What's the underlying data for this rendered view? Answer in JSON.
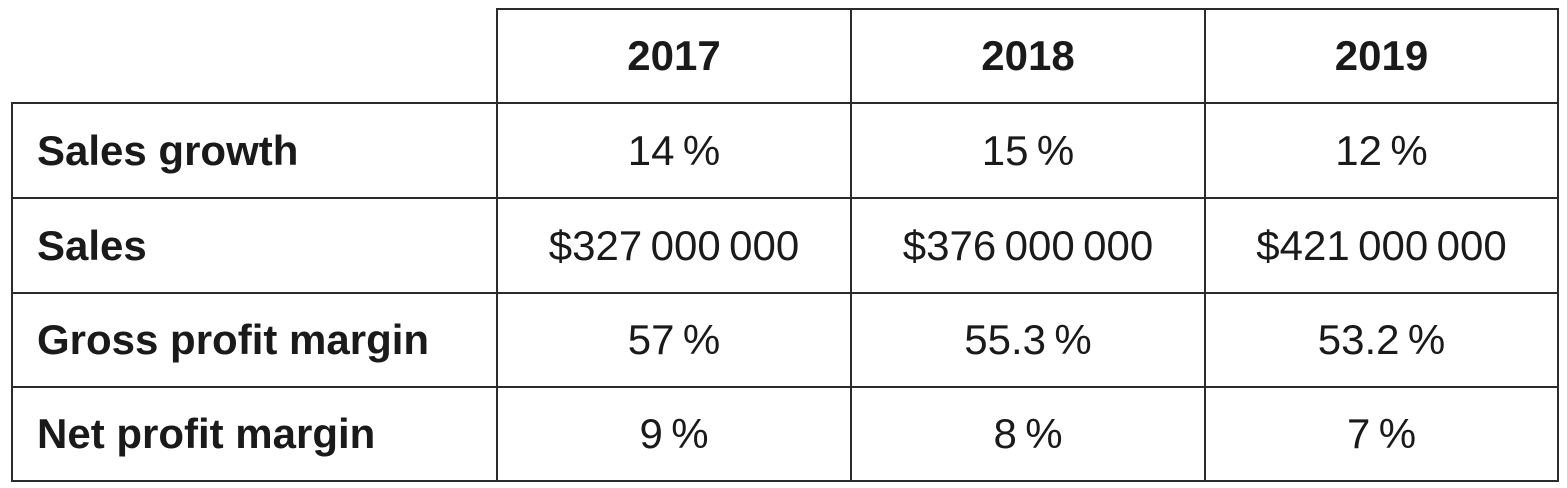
{
  "table": {
    "columns": [
      "2017",
      "2018",
      "2019"
    ],
    "rows": [
      {
        "label": "Sales growth",
        "values": [
          "14 %",
          "15 %",
          "12 %"
        ]
      },
      {
        "label": "Sales",
        "values": [
          "$327 000 000",
          "$376 000 000",
          "$421 000 000"
        ]
      },
      {
        "label": "Gross profit margin",
        "values": [
          "57 %",
          "55.3 %",
          "53.2 %"
        ]
      },
      {
        "label": "Net profit margin",
        "values": [
          "9 %",
          "8 %",
          "7 %"
        ]
      }
    ]
  }
}
